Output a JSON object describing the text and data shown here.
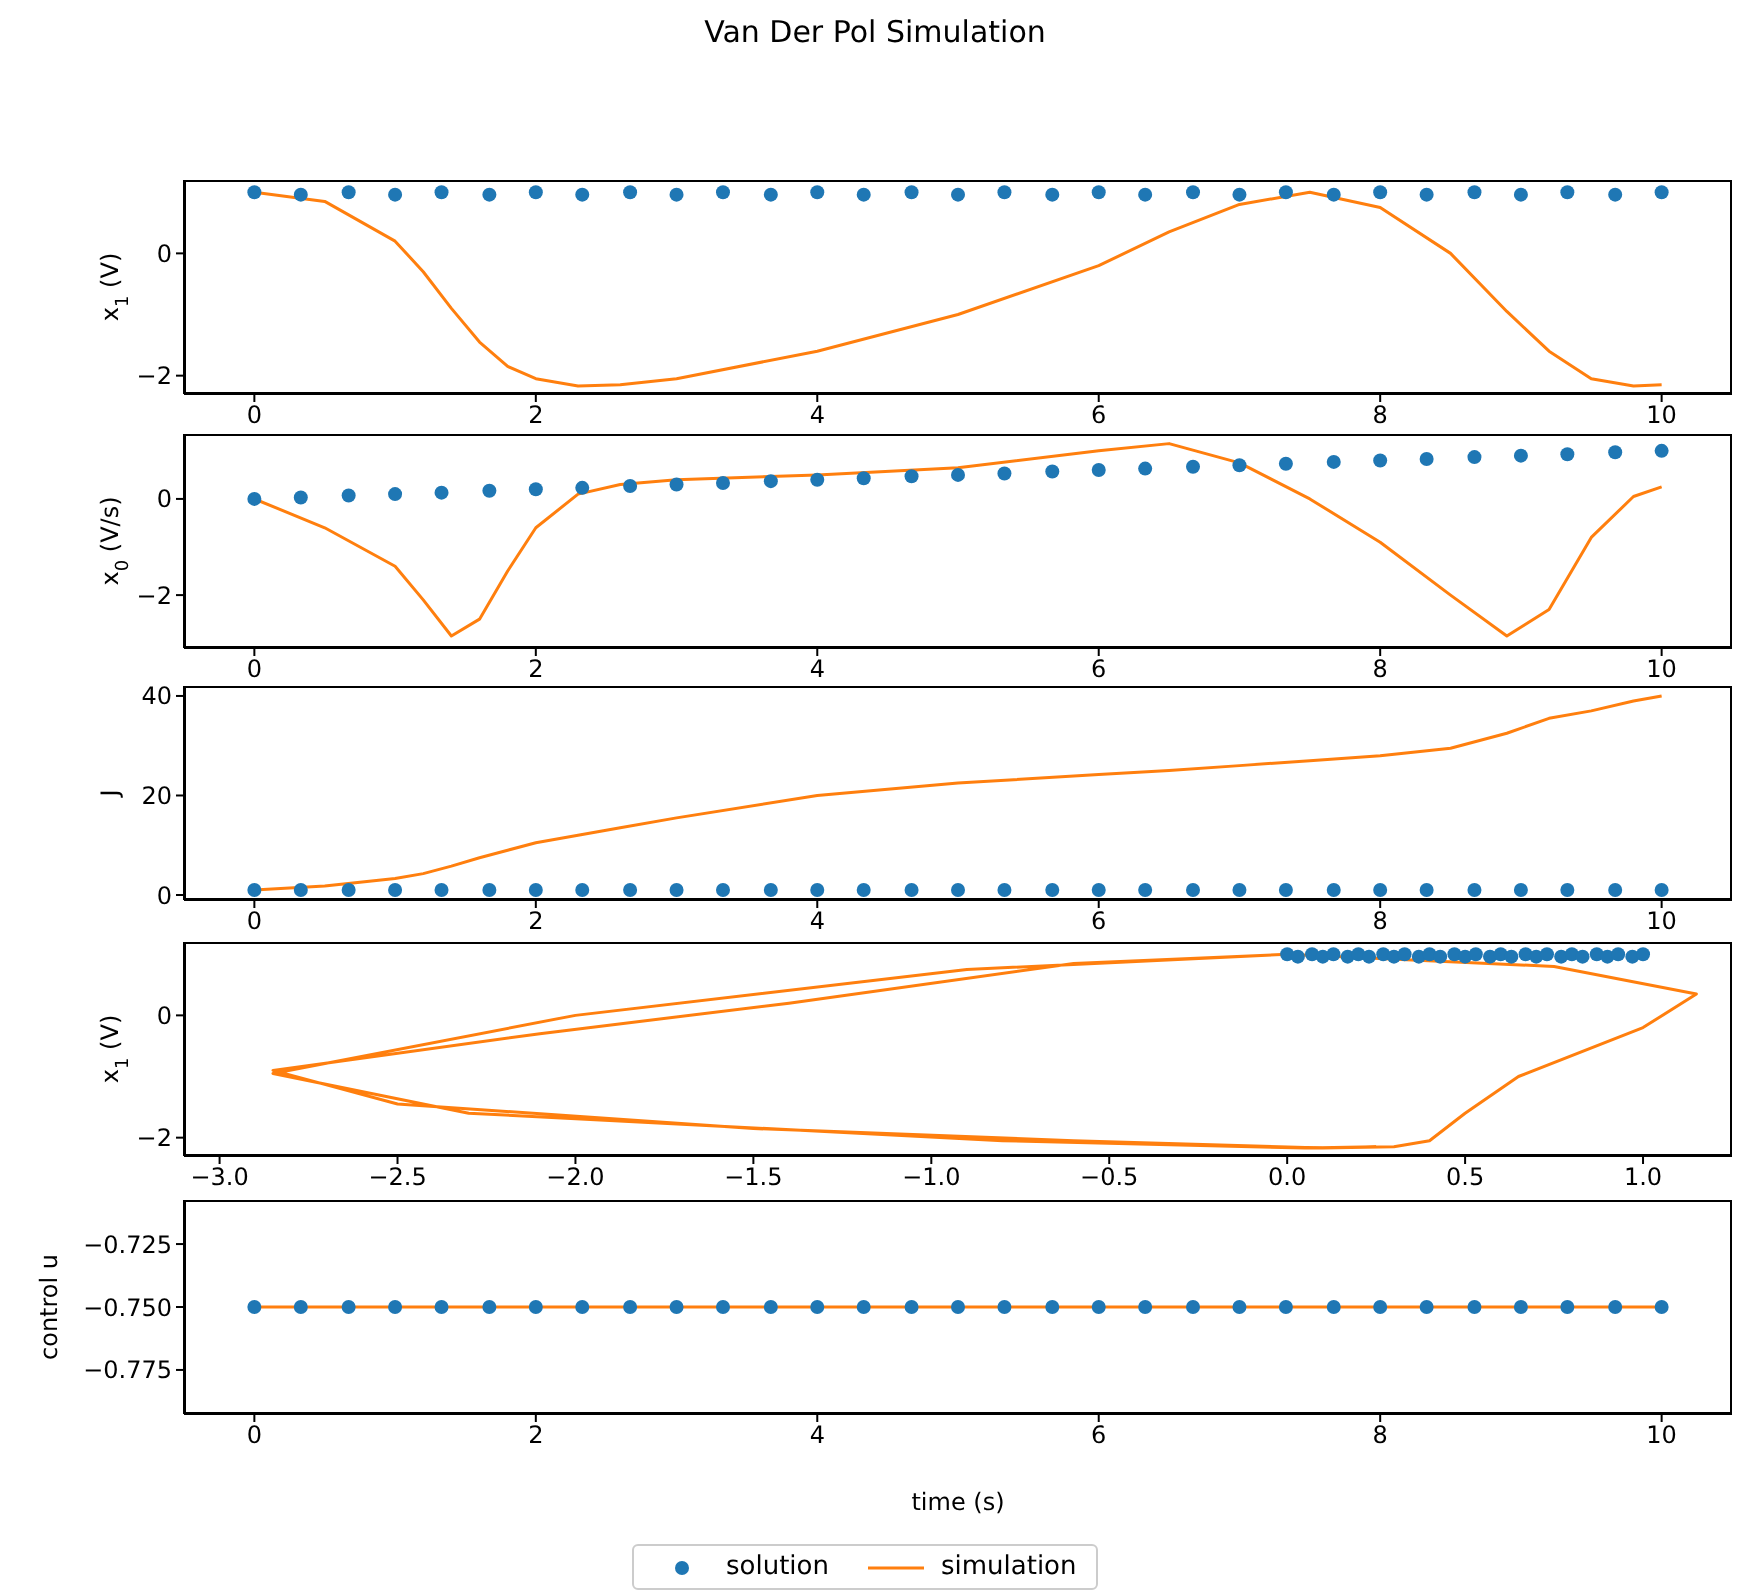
{
  "chart_data": [
    {
      "type": "scatter",
      "title": "Van Der Pol Simulation",
      "ylabel": "x$_{1}$ (V)",
      "xlim": [
        -0.5,
        10.5
      ],
      "xticks": [
        0,
        2,
        4,
        6,
        8,
        10
      ],
      "ylim": [
        -2.3,
        1.2
      ],
      "yticks": [
        {
          "value": -2,
          "label": "−2"
        },
        0
      ],
      "series": [
        {
          "marker": "circle",
          "color": "#1f77b4",
          "x": [
            0,
            0.33,
            0.67,
            1,
            1.33,
            1.67,
            2,
            2.33,
            2.67,
            3,
            3.33,
            3.67,
            4,
            4.33,
            4.67,
            5,
            5.33,
            5.67,
            6,
            6.33,
            6.67,
            7,
            7.33,
            7.67,
            8,
            8.33,
            8.67,
            9,
            9.33,
            9.67,
            10
          ],
          "values": [
            1,
            0.96,
            1,
            0.96,
            1,
            0.96,
            1,
            0.96,
            1,
            0.96,
            1,
            0.96,
            1,
            0.96,
            1,
            0.96,
            1,
            0.96,
            1,
            0.96,
            1,
            0.96,
            1,
            0.96,
            1,
            0.96,
            1,
            0.96,
            1,
            0.96,
            1
          ]
        },
        {
          "type": "line",
          "marker": "none",
          "color": "#ff7f0e",
          "x": [
            0,
            0.5,
            1,
            1.2,
            1.4,
            1.6,
            1.8,
            2,
            2.3,
            2.6,
            3,
            4,
            5,
            6,
            6.5,
            7,
            7.5,
            8,
            8.5,
            8.9,
            9.2,
            9.5,
            9.8,
            10
          ],
          "values": [
            1,
            0.85,
            0.2,
            -0.3,
            -0.9,
            -1.45,
            -1.85,
            -2.05,
            -2.17,
            -2.15,
            -2.05,
            -1.6,
            -1,
            -0.2,
            0.35,
            0.8,
            1,
            0.75,
            0,
            -0.95,
            -1.6,
            -2.05,
            -2.17,
            -2.15
          ]
        }
      ]
    },
    {
      "type": "scatter",
      "ylabel": "x$_{0}$ (V/s)",
      "xlim": [
        -0.5,
        10.5
      ],
      "xticks": [
        0,
        2,
        4,
        6,
        8,
        10
      ],
      "ylim": [
        -3.1,
        1.35
      ],
      "yticks": [
        {
          "value": -2,
          "label": "−2"
        },
        0
      ],
      "series": [
        {
          "marker": "circle",
          "color": "#1f77b4",
          "x": [
            0,
            0.33,
            0.67,
            1,
            1.33,
            1.67,
            2,
            2.33,
            2.67,
            3,
            3.33,
            3.67,
            4,
            4.33,
            4.67,
            5,
            5.33,
            5.67,
            6,
            6.33,
            6.67,
            7,
            7.33,
            7.67,
            8,
            8.33,
            8.67,
            9,
            9.33,
            9.67,
            10
          ],
          "values": [
            0,
            0.03,
            0.07,
            0.1,
            0.13,
            0.17,
            0.2,
            0.23,
            0.27,
            0.3,
            0.33,
            0.37,
            0.4,
            0.43,
            0.47,
            0.5,
            0.53,
            0.57,
            0.6,
            0.63,
            0.67,
            0.7,
            0.73,
            0.77,
            0.8,
            0.83,
            0.87,
            0.9,
            0.93,
            0.97,
            1
          ]
        },
        {
          "type": "line",
          "marker": "none",
          "color": "#ff7f0e",
          "x": [
            0,
            0.5,
            1,
            1.2,
            1.4,
            1.6,
            1.8,
            2,
            2.3,
            2.6,
            3,
            4,
            5,
            6,
            6.5,
            7,
            7.5,
            8,
            8.5,
            8.9,
            9.2,
            9.5,
            9.8,
            10
          ],
          "values": [
            0,
            -0.6,
            -1.4,
            -2.1,
            -2.85,
            -2.5,
            -1.5,
            -0.6,
            0.1,
            0.3,
            0.4,
            0.5,
            0.65,
            1,
            1.15,
            0.75,
            0,
            -0.9,
            -2,
            -2.85,
            -2.3,
            -0.8,
            0.05,
            0.25
          ]
        }
      ]
    },
    {
      "type": "scatter",
      "ylabel": "J",
      "xlim": [
        -0.5,
        10.5
      ],
      "xticks": [
        0,
        2,
        4,
        6,
        8,
        10
      ],
      "ylim": [
        -1,
        42
      ],
      "yticks": [
        0,
        20,
        40
      ],
      "series": [
        {
          "marker": "circle",
          "color": "#1f77b4",
          "x": [
            0,
            0.33,
            0.67,
            1,
            1.33,
            1.67,
            2,
            2.33,
            2.67,
            3,
            3.33,
            3.67,
            4,
            4.33,
            4.67,
            5,
            5.33,
            5.67,
            6,
            6.33,
            6.67,
            7,
            7.33,
            7.67,
            8,
            8.33,
            8.67,
            9,
            9.33,
            9.67,
            10
          ],
          "values": [
            1,
            1,
            1,
            1,
            1,
            1,
            1,
            1,
            1,
            1,
            1,
            1,
            1,
            1,
            1,
            1,
            1,
            1,
            1,
            1,
            1,
            1,
            1,
            1,
            1,
            1,
            1,
            1,
            1,
            1,
            1
          ]
        },
        {
          "type": "line",
          "marker": "none",
          "color": "#ff7f0e",
          "x": [
            0,
            0.5,
            1,
            1.2,
            1.4,
            1.6,
            1.8,
            2,
            2.3,
            2.6,
            3,
            4,
            5,
            6,
            6.5,
            7,
            7.5,
            8,
            8.5,
            8.9,
            9.2,
            9.5,
            9.8,
            10
          ],
          "values": [
            1,
            1.8,
            3.3,
            4.3,
            5.8,
            7.5,
            9,
            10.5,
            12,
            13.5,
            15.5,
            20,
            22.5,
            24.2,
            25,
            26,
            27,
            28,
            29.5,
            32.5,
            35.5,
            37,
            39,
            40
          ]
        }
      ]
    },
    {
      "type": "scatter",
      "ylabel": "x$_{1}$ (V)",
      "xlim": [
        -3.1,
        1.25
      ],
      "xticks": [
        {
          "value": -3,
          "label": "−3.0"
        },
        {
          "value": -2.5,
          "label": "−2.5"
        },
        {
          "value": -2,
          "label": "−2.0"
        },
        {
          "value": -1.5,
          "label": "−1.5"
        },
        {
          "value": -1,
          "label": "−1.0"
        },
        {
          "value": -0.5,
          "label": "−0.5"
        },
        {
          "value": 0,
          "label": "0.0"
        },
        0.5,
        {
          "value": 1,
          "label": "1.0"
        }
      ],
      "ylim": [
        -2.3,
        1.2
      ],
      "yticks": [
        {
          "value": -2,
          "label": "−2"
        },
        0
      ],
      "series": [
        {
          "marker": "circle",
          "color": "#1f77b4",
          "x": [
            0,
            0.03,
            0.07,
            0.1,
            0.13,
            0.17,
            0.2,
            0.23,
            0.27,
            0.3,
            0.33,
            0.37,
            0.4,
            0.43,
            0.47,
            0.5,
            0.53,
            0.57,
            0.6,
            0.63,
            0.67,
            0.7,
            0.73,
            0.77,
            0.8,
            0.83,
            0.87,
            0.9,
            0.93,
            0.97,
            1
          ],
          "values": [
            1,
            0.96,
            1,
            0.96,
            1,
            0.96,
            1,
            0.96,
            1,
            0.96,
            1,
            0.96,
            1,
            0.96,
            1,
            0.96,
            1,
            0.96,
            1,
            0.96,
            1,
            0.96,
            1,
            0.96,
            1,
            0.96,
            1,
            0.96,
            1,
            0.96,
            1
          ]
        },
        {
          "type": "line",
          "marker": "none",
          "color": "#ff7f0e",
          "x": [
            0,
            -0.6,
            -1.4,
            -2.1,
            -2.85,
            -2.5,
            -1.5,
            -0.6,
            0.1,
            0.3,
            0.4,
            0.5,
            0.65,
            1,
            1.15,
            0.75,
            0,
            -0.9,
            -2,
            -2.85,
            -2.3,
            -0.8,
            0.05,
            0.25
          ],
          "values": [
            1,
            0.85,
            0.2,
            -0.3,
            -0.9,
            -1.45,
            -1.85,
            -2.05,
            -2.17,
            -2.15,
            -2.05,
            -1.6,
            -1,
            -0.2,
            0.35,
            0.8,
            1,
            0.75,
            0,
            -0.95,
            -1.6,
            -2.05,
            -2.17,
            -2.15
          ]
        }
      ]
    },
    {
      "type": "scatter",
      "ylabel": "control u",
      "xlabel": "time (s)",
      "legend": "bottom",
      "xlim": [
        -0.5,
        10.5
      ],
      "xticks": [
        0,
        2,
        4,
        6,
        8,
        10
      ],
      "ylim": [
        -0.7925,
        -0.7075
      ],
      "yticks": [
        {
          "value": -0.775,
          "label": "−0.775"
        },
        {
          "value": -0.75,
          "label": "−0.750"
        },
        {
          "value": -0.725,
          "label": "−0.725"
        }
      ],
      "series": [
        {
          "marker": "circle",
          "name": "solution",
          "color": "#1f77b4",
          "x": [
            0,
            0.33,
            0.67,
            1,
            1.33,
            1.67,
            2,
            2.33,
            2.67,
            3,
            3.33,
            3.67,
            4,
            4.33,
            4.67,
            5,
            5.33,
            5.67,
            6,
            6.33,
            6.67,
            7,
            7.33,
            7.67,
            8,
            8.33,
            8.67,
            9,
            9.33,
            9.67,
            10
          ],
          "values": [
            -0.75,
            -0.75,
            -0.75,
            -0.75,
            -0.75,
            -0.75,
            -0.75,
            -0.75,
            -0.75,
            -0.75,
            -0.75,
            -0.75,
            -0.75,
            -0.75,
            -0.75,
            -0.75,
            -0.75,
            -0.75,
            -0.75,
            -0.75,
            -0.75,
            -0.75,
            -0.75,
            -0.75,
            -0.75,
            -0.75,
            -0.75,
            -0.75,
            -0.75,
            -0.75,
            -0.75
          ]
        },
        {
          "type": "line",
          "marker": "none",
          "name": "simulation",
          "color": "#ff7f0e",
          "x": [
            0,
            10
          ],
          "values": [
            -0.75,
            -0.75
          ]
        }
      ]
    }
  ]
}
